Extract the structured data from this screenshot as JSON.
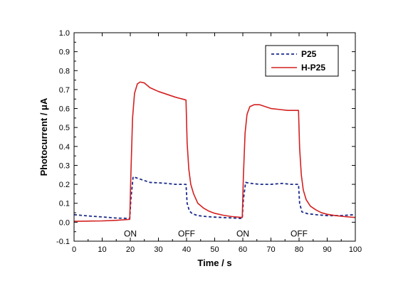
{
  "chart_data": {
    "type": "line",
    "xlabel": "Time / s",
    "ylabel": "Photocurrent / μA",
    "xlim": [
      0,
      100
    ],
    "ylim": [
      -0.1,
      1.0
    ],
    "xticks": [
      0,
      10,
      20,
      30,
      40,
      50,
      60,
      70,
      80,
      90,
      100
    ],
    "yticks": [
      -0.1,
      0.0,
      0.1,
      0.2,
      0.3,
      0.4,
      0.5,
      0.6,
      0.7,
      0.8,
      0.9,
      1.0
    ],
    "xtick_labels": [
      "0",
      "10",
      "20",
      "30",
      "40",
      "50",
      "60",
      "70",
      "80",
      "90",
      "100"
    ],
    "ytick_labels": [
      "-0.1",
      "0.0",
      "0.1",
      "0.2",
      "0.3",
      "0.4",
      "0.5",
      "0.6",
      "0.7",
      "0.8",
      "0.9",
      "1.0"
    ],
    "legend_position": "top-right",
    "grid": false,
    "annotations": [
      {
        "text": "ON",
        "x": 20,
        "y": -0.06
      },
      {
        "text": "OFF",
        "x": 40,
        "y": -0.06
      },
      {
        "text": "ON",
        "x": 60,
        "y": -0.06
      },
      {
        "text": "OFF",
        "x": 80,
        "y": -0.06
      }
    ],
    "series": [
      {
        "name": "P25",
        "color": "#1a2a8a",
        "style": "dashed",
        "x": [
          0,
          5,
          10,
          15,
          19.8,
          20.2,
          21,
          22,
          24,
          27,
          30,
          33,
          36,
          39.8,
          40.2,
          41,
          42,
          44,
          47,
          50,
          54,
          59.8,
          60.2,
          61,
          63,
          66,
          70,
          74,
          77,
          79.8,
          80.2,
          81,
          83,
          86,
          90,
          95,
          100
        ],
        "y": [
          0.04,
          0.033,
          0.028,
          0.022,
          0.02,
          0.12,
          0.24,
          0.235,
          0.225,
          0.21,
          0.208,
          0.205,
          0.2,
          0.2,
          0.1,
          0.06,
          0.045,
          0.035,
          0.03,
          0.027,
          0.024,
          0.02,
          0.12,
          0.21,
          0.205,
          0.2,
          0.2,
          0.205,
          0.2,
          0.2,
          0.1,
          0.055,
          0.045,
          0.04,
          0.035,
          0.035,
          0.04
        ]
      },
      {
        "name": "H-P25",
        "color": "#d42020",
        "style": "solid",
        "x": [
          0,
          5,
          10,
          15,
          19.8,
          20.2,
          20.8,
          21.5,
          22.5,
          23.5,
          25,
          27,
          30,
          33,
          36,
          39.8,
          40.2,
          40.8,
          41.5,
          42.5,
          44,
          46,
          48,
          50,
          53,
          56,
          59.8,
          60.2,
          60.8,
          61.5,
          62.5,
          64,
          66,
          68,
          70,
          73,
          76,
          79.8,
          80.2,
          80.8,
          81.5,
          82.5,
          84,
          86,
          88,
          90,
          93,
          96,
          100
        ],
        "y": [
          0.005,
          0.006,
          0.007,
          0.01,
          0.015,
          0.25,
          0.55,
          0.68,
          0.73,
          0.74,
          0.735,
          0.71,
          0.69,
          0.675,
          0.66,
          0.645,
          0.42,
          0.28,
          0.2,
          0.15,
          0.1,
          0.075,
          0.058,
          0.047,
          0.037,
          0.03,
          0.025,
          0.24,
          0.47,
          0.57,
          0.61,
          0.62,
          0.62,
          0.61,
          0.6,
          0.595,
          0.59,
          0.59,
          0.39,
          0.25,
          0.17,
          0.12,
          0.085,
          0.065,
          0.05,
          0.042,
          0.035,
          0.03,
          0.025
        ]
      }
    ]
  }
}
